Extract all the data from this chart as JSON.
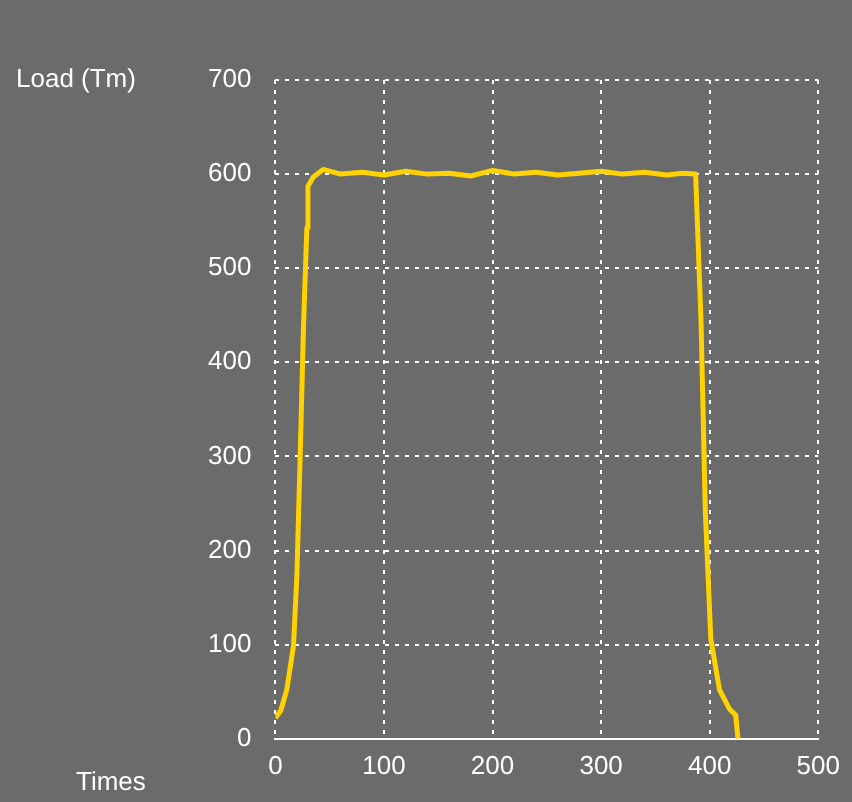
{
  "chart_data": {
    "type": "line",
    "xlabel": "Times",
    "ylabel": "Load (Tm)",
    "x": [
      0,
      5,
      10.5,
      16.7,
      19.8,
      23,
      26,
      29,
      30,
      35,
      44,
      60,
      80,
      100,
      120,
      140,
      160,
      180,
      200,
      220,
      240,
      260,
      280,
      300,
      320,
      340,
      360,
      375,
      387,
      392,
      396,
      401,
      409,
      418,
      424,
      426
    ],
    "series": [
      {
        "color": "#ffd200",
        "values": [
          22,
          30,
          52,
          99,
          173,
          308,
          442,
          543,
          587,
          597,
          605,
          600,
          602,
          599,
          603,
          600,
          601,
          598,
          604,
          600,
          602,
          599,
          601,
          603,
          600,
          602,
          599,
          601,
          600,
          443,
          240,
          106,
          52,
          32,
          25,
          0
        ]
      }
    ],
    "xlim": [
      0,
      500
    ],
    "xticks": [
      0,
      100,
      200,
      300,
      400,
      500
    ],
    "ylim": [
      0,
      700
    ],
    "yticks": [
      0,
      100,
      200,
      300,
      400,
      500,
      600,
      700
    ],
    "grid": true,
    "legend": false,
    "marker": "none",
    "line_style": "solid"
  }
}
